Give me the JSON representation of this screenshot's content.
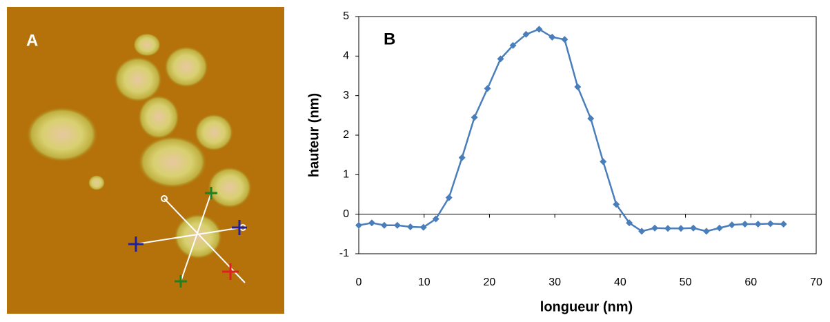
{
  "panel_a": {
    "label": "A"
  },
  "chart_data": {
    "type": "line",
    "annotation": "B",
    "x_label": "longueur (nm)",
    "y_label": "hauteur (nm)",
    "x": [
      0,
      2.0,
      3.9,
      5.9,
      7.9,
      9.9,
      11.8,
      13.8,
      15.8,
      17.7,
      19.7,
      21.7,
      23.6,
      25.6,
      27.6,
      29.6,
      31.5,
      33.5,
      35.5,
      37.4,
      39.4,
      41.4,
      43.3,
      45.3,
      47.3,
      49.3,
      51.2,
      53.2,
      55.2,
      57.1,
      59.1,
      61.1,
      63.0,
      65.0
    ],
    "series": [
      {
        "color": "#4a7ebb",
        "values": [
          -0.28,
          -0.22,
          -0.28,
          -0.28,
          -0.32,
          -0.33,
          -0.12,
          0.42,
          1.43,
          2.45,
          3.18,
          3.93,
          4.27,
          4.55,
          4.68,
          4.48,
          4.42,
          3.22,
          2.42,
          1.33,
          0.25,
          -0.22,
          -0.43,
          -0.35,
          -0.36,
          -0.36,
          -0.35,
          -0.43,
          -0.35,
          -0.27,
          -0.25,
          -0.25,
          -0.24,
          -0.25
        ]
      }
    ],
    "xlim": [
      0,
      70
    ],
    "xticks": [
      0,
      10,
      20,
      30,
      40,
      50,
      60,
      70
    ],
    "ylim": [
      -1,
      5
    ],
    "yticks": [
      -1,
      0,
      1,
      2,
      3,
      4,
      5
    ]
  }
}
